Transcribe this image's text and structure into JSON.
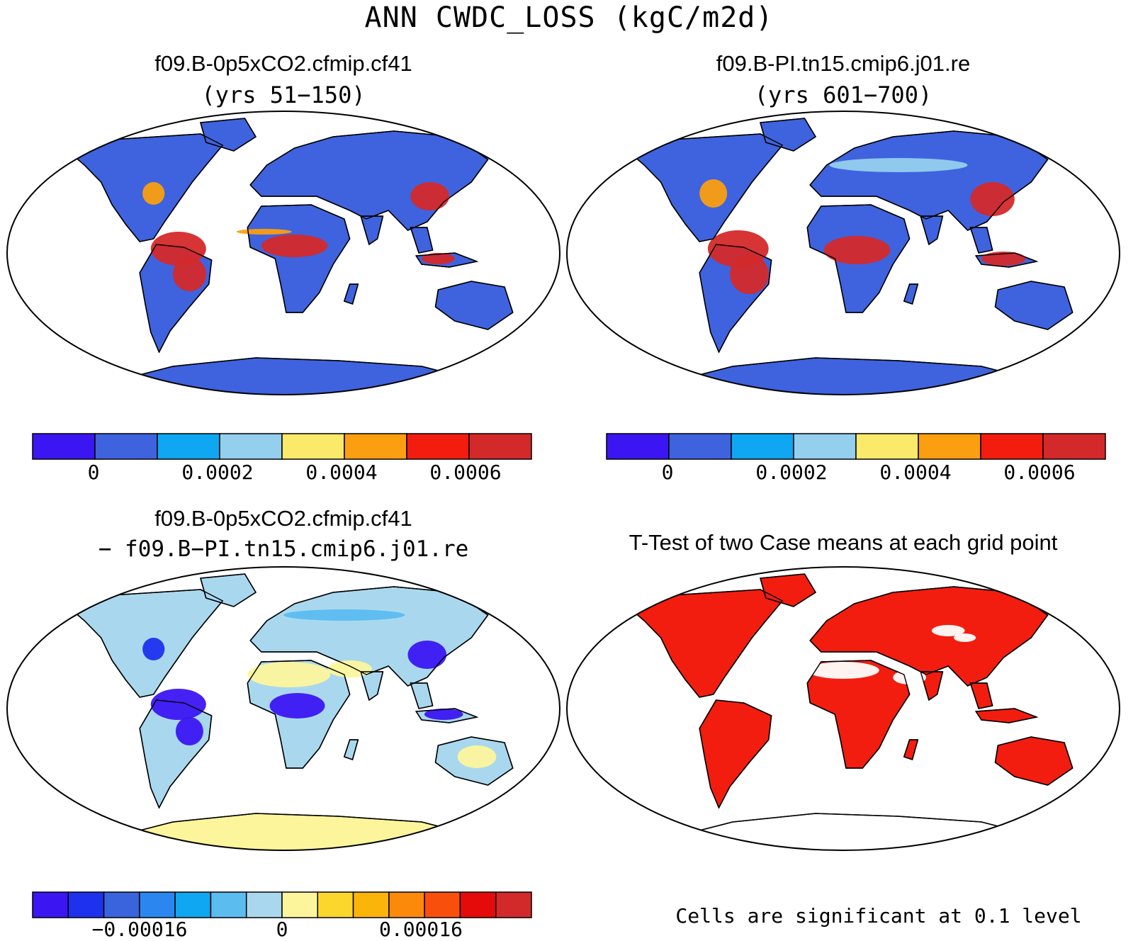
{
  "figure_title": "ANN CWDC_LOSS (kgC/m2d)",
  "panels": [
    {
      "title": "f09.B-0p5xCO2.cfmip.cf41",
      "subtitle": "(yrs 51−150)"
    },
    {
      "title": "f09.B-PI.tn15.cmip6.j01.re",
      "subtitle": "(yrs 601−700)"
    },
    {
      "title": "f09.B-0p5xCO2.cfmip.cf41",
      "subtitle": "− f09.B−PI.tn15.cmip6.j01.re"
    },
    {
      "title": "T-Test of two Case means at each grid point",
      "subtitle": ""
    }
  ],
  "colorbars": {
    "abs": {
      "colors": [
        "#3b16f2",
        "#3f63de",
        "#0fa6f2",
        "#94cfed",
        "#fbe96a",
        "#fb9e0f",
        "#f21d0f",
        "#d4292a"
      ],
      "tick_labels": [
        "0",
        "0.0002",
        "0.0004",
        "0.0006"
      ]
    },
    "diff": {
      "colors": [
        "#3b16f2",
        "#1e32ee",
        "#3a63de",
        "#2b86f0",
        "#0fa6f2",
        "#5bbcf0",
        "#a9d8ee",
        "#fdf59c",
        "#fbd62c",
        "#fbb40a",
        "#fb8a0a",
        "#f8500c",
        "#e50b0b",
        "#d22a2a"
      ],
      "tick_labels": [
        "−0.00016",
        "0",
        "0.00016"
      ]
    }
  },
  "significance_note": "Cells are significant at 0.1 level",
  "map_colors": {
    "ocean": "#ffffff",
    "land_abs_base": "#3f63de",
    "high_abs": "#d4292a",
    "diff_base": "#a9d8ee",
    "diff_dry": "#fdf59c",
    "diff_tropic": "#3b16f2",
    "ttest_sig": "#f21d0f"
  }
}
